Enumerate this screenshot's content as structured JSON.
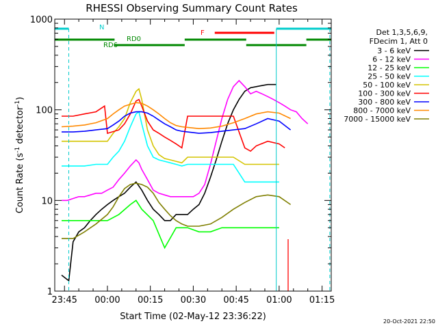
{
  "chart_data": {
    "type": "line",
    "title": "RHESSI Observing Summary Count Rates",
    "xlabel": "Start Time (02-May-12 23:36:22)",
    "ylabel_main": "Count Rate (s",
    "ylabel_sup1": "-1",
    "ylabel_mid": " detector",
    "ylabel_sup2": "-1",
    "ylabel_end": ")",
    "yscale": "log",
    "ylim": [
      1,
      1000
    ],
    "xlim_minutes": [
      -18.4,
      78.2
    ],
    "x_ticks": [
      {
        "label": "23:45",
        "min": -15
      },
      {
        "label": "00:00",
        "min": 0
      },
      {
        "label": "00:15",
        "min": 15
      },
      {
        "label": "00:30",
        "min": 30
      },
      {
        "label": "00:45",
        "min": 45
      },
      {
        "label": "01:00",
        "min": 60
      },
      {
        "label": "01:15",
        "min": 75
      }
    ],
    "y_ticks": [
      {
        "label": "1",
        "v": 1
      },
      {
        "label": "10",
        "v": 10
      },
      {
        "label": "100",
        "v": 100
      },
      {
        "label": "1000",
        "v": 1000
      }
    ],
    "legend_header": [
      "Det 1,3,5,6,9,",
      "FDecim 1, Att 0"
    ],
    "legend_placement": "right",
    "series": [
      {
        "name": "3 - 6 keV",
        "color": "#000000",
        "x": [
          -16,
          -13.5,
          -12,
          -10,
          -8,
          -6,
          -4,
          -2,
          0,
          2,
          4,
          6,
          8,
          10,
          12,
          14,
          16,
          18,
          20,
          22,
          24,
          26,
          28,
          30,
          32,
          34,
          36,
          38,
          40,
          42,
          44,
          46,
          48,
          50,
          52,
          54,
          56,
          58,
          59
        ],
        "y": [
          1.5,
          1.3,
          3.5,
          4.5,
          5,
          6,
          7,
          8,
          9,
          10,
          11,
          12,
          14,
          16,
          13,
          10,
          8,
          7,
          6,
          6,
          7,
          7,
          7,
          8,
          9,
          12,
          18,
          28,
          45,
          70,
          100,
          130,
          160,
          175,
          180,
          185,
          190,
          190,
          190
        ]
      },
      {
        "name": "6 - 12 keV",
        "color": "#ff00ff",
        "x": [
          -16,
          -14,
          -12,
          -10,
          -8,
          -6,
          -4,
          -2,
          0,
          2,
          4,
          6,
          8,
          10,
          11,
          12,
          14,
          16,
          18,
          20,
          22,
          24,
          26,
          28,
          30,
          32,
          34,
          36,
          38,
          40,
          42,
          44,
          46,
          48,
          50,
          52,
          54,
          56,
          58,
          60,
          62,
          64,
          66,
          68,
          70
        ],
        "y": [
          10,
          10,
          10.5,
          11,
          11,
          11.5,
          12,
          12,
          13,
          14,
          17,
          20,
          24,
          28,
          26,
          22,
          17,
          13,
          12,
          11.5,
          11,
          11,
          11,
          11,
          11,
          12,
          15,
          25,
          45,
          80,
          130,
          180,
          210,
          180,
          150,
          160,
          150,
          140,
          130,
          120,
          110,
          100,
          95,
          80,
          70
        ]
      },
      {
        "name": "12 - 25 keV",
        "color": "#00ff00",
        "x": [
          -16,
          -12,
          -8,
          -4,
          0,
          4,
          8,
          10,
          12,
          16,
          20,
          24,
          28,
          32,
          36,
          40,
          44,
          48,
          52,
          56,
          60
        ],
        "y": [
          6,
          6,
          6,
          6,
          6,
          7,
          9,
          10,
          8,
          6,
          3,
          5,
          5,
          4.5,
          4.5,
          5,
          5,
          5,
          5,
          5,
          5
        ]
      },
      {
        "name": "25 - 50 keV",
        "color": "#00ffff",
        "x": [
          -16,
          -12,
          -8,
          -4,
          0,
          2,
          4,
          6,
          8,
          10,
          11,
          12,
          14,
          16,
          18,
          20,
          22,
          24,
          26,
          28,
          32,
          36,
          40,
          44,
          48,
          52,
          56,
          60
        ],
        "y": [
          24,
          24,
          24,
          25,
          25,
          30,
          35,
          45,
          65,
          90,
          95,
          70,
          40,
          30,
          28,
          27,
          26,
          25,
          24,
          25,
          25,
          25,
          25,
          25,
          16,
          16,
          16,
          16
        ]
      },
      {
        "name": "50 - 100 keV",
        "color": "#d4c400",
        "x": [
          -16,
          -12,
          -8,
          -4,
          0,
          2,
          4,
          6,
          8,
          10,
          11,
          12,
          14,
          16,
          18,
          20,
          22,
          24,
          26,
          28,
          32,
          36,
          40,
          44,
          48,
          52,
          56,
          60
        ],
        "y": [
          45,
          45,
          45,
          45,
          45,
          55,
          65,
          80,
          120,
          160,
          170,
          130,
          60,
          40,
          32,
          29,
          28,
          27,
          26,
          30,
          30,
          30,
          30,
          30,
          25,
          25,
          25,
          25
        ]
      },
      {
        "name": "100 - 300 keV",
        "color": "#ff0000",
        "x": [
          -16,
          -12,
          -8,
          -4,
          -1,
          0,
          4,
          6,
          8,
          10,
          11,
          12,
          14,
          16,
          18,
          20,
          22,
          24,
          26,
          28,
          32,
          36,
          40,
          44,
          48,
          50,
          52,
          56,
          60,
          62
        ],
        "y": [
          85,
          85,
          90,
          95,
          110,
          55,
          60,
          70,
          90,
          125,
          130,
          110,
          75,
          60,
          55,
          50,
          46,
          42,
          38,
          85,
          85,
          85,
          85,
          85,
          38,
          35,
          40,
          45,
          42,
          38
        ]
      },
      {
        "name": "300 - 800 keV",
        "color": "#0000ff",
        "x": [
          -16,
          -12,
          -8,
          -4,
          0,
          2,
          4,
          6,
          8,
          10,
          12,
          14,
          16,
          18,
          20,
          22,
          24,
          26,
          28,
          32,
          36,
          40,
          44,
          48,
          52,
          56,
          60,
          64
        ],
        "y": [
          57,
          57,
          58,
          60,
          62,
          68,
          75,
          85,
          92,
          95,
          95,
          92,
          85,
          77,
          70,
          65,
          60,
          58,
          57,
          55,
          56,
          58,
          60,
          62,
          70,
          80,
          75,
          60
        ]
      },
      {
        "name": "800 - 7000 keV",
        "color": "#ff8800",
        "x": [
          -16,
          -12,
          -8,
          -4,
          0,
          2,
          4,
          6,
          8,
          10,
          12,
          14,
          16,
          18,
          20,
          22,
          24,
          26,
          28,
          32,
          36,
          40,
          44,
          48,
          52,
          56,
          60,
          64
        ],
        "y": [
          65,
          66,
          68,
          72,
          80,
          90,
          100,
          110,
          115,
          120,
          118,
          110,
          100,
          90,
          80,
          72,
          67,
          65,
          64,
          62,
          63,
          66,
          72,
          80,
          90,
          95,
          92,
          80
        ]
      },
      {
        "name": "7000 - 15000 keV",
        "color": "#7f7f00",
        "x": [
          -16,
          -12,
          -8,
          -4,
          0,
          2,
          4,
          6,
          8,
          10,
          12,
          14,
          16,
          18,
          20,
          22,
          24,
          26,
          28,
          32,
          36,
          40,
          44,
          48,
          52,
          56,
          60,
          64
        ],
        "y": [
          3.8,
          3.8,
          4.5,
          5.5,
          7,
          8.5,
          11,
          13.5,
          15,
          15.5,
          15,
          14,
          12,
          9.5,
          8,
          6.8,
          6,
          5.5,
          5.2,
          5.2,
          5.5,
          6.5,
          8,
          9.5,
          11,
          11.5,
          11,
          9
        ]
      }
    ],
    "annotations": [
      {
        "text": "N",
        "color": "#00cccc"
      },
      {
        "text": "RD0",
        "color": "#008800"
      },
      {
        "text": "RD6",
        "color": "#008800"
      },
      {
        "text": "F",
        "color": "#ff0000"
      }
    ],
    "footer_date": "20-Oct-2021 22:50"
  }
}
